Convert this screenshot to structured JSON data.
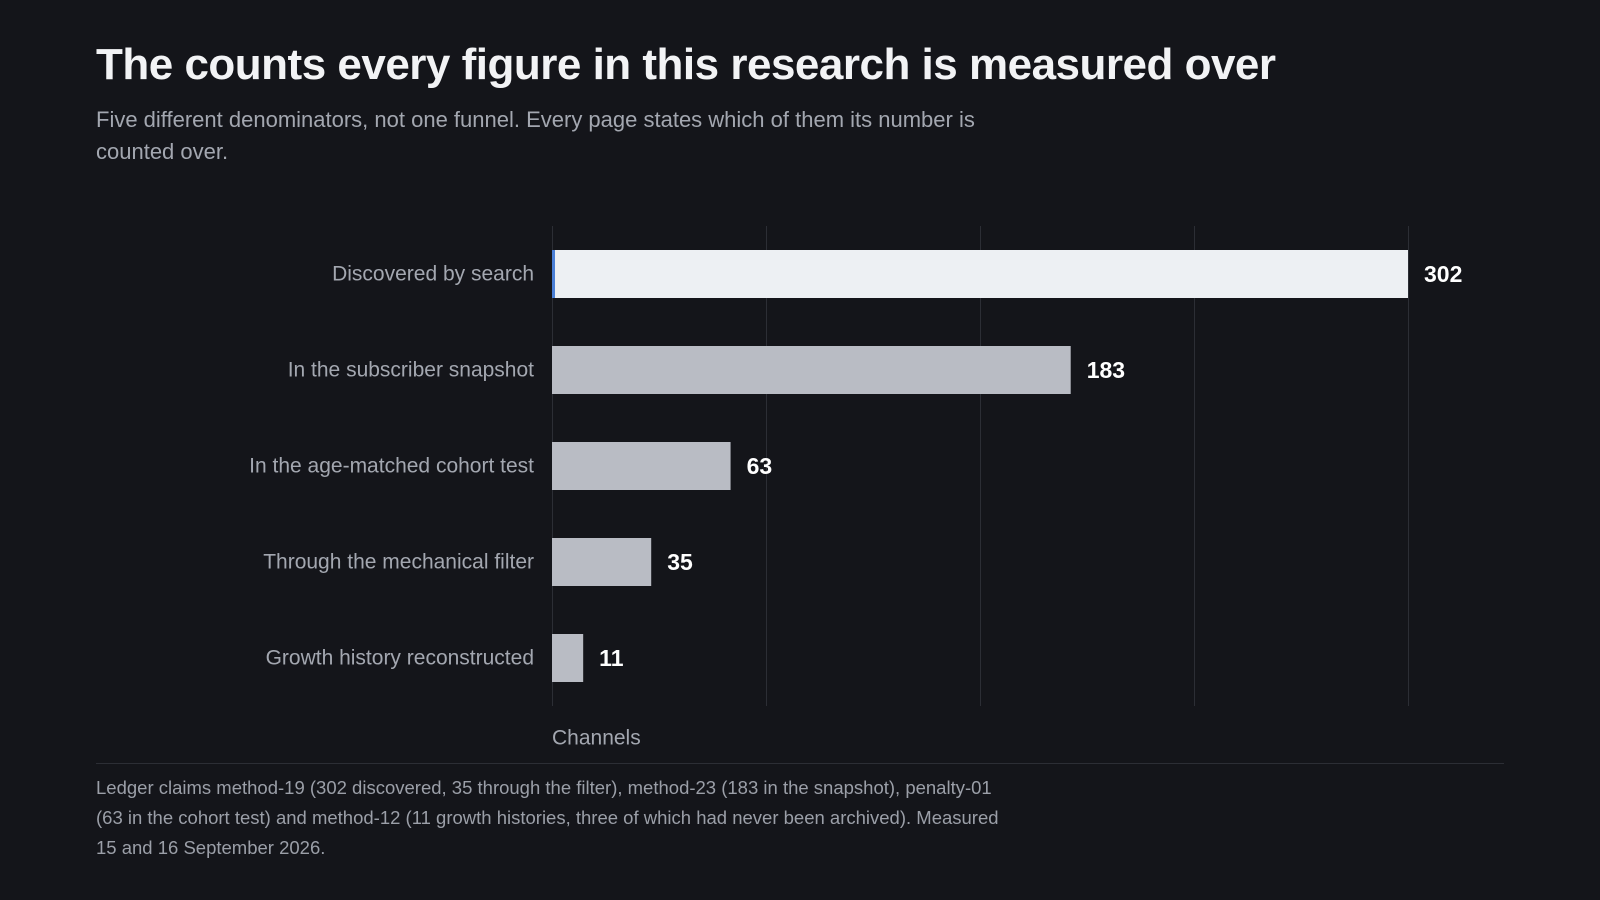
{
  "header": {
    "title": "The counts every figure in this research is measured over",
    "subtitle": "Five different denominators, not one funnel. Every page states which of them its number is counted over."
  },
  "chart_data": {
    "type": "bar",
    "orientation": "horizontal",
    "categories": [
      "Discovered by search",
      "In the subscriber snapshot",
      "In the age-matched cohort test",
      "Through the mechanical filter",
      "Growth history reconstructed"
    ],
    "values": [
      302,
      183,
      63,
      35,
      11
    ],
    "value_labels": [
      "302",
      "183",
      "63",
      "35",
      "11"
    ],
    "xlabel": "Channels",
    "xlim": [
      0,
      302
    ],
    "grid_step": 75.5,
    "grid": true,
    "colors": {
      "highlight_bar": "#edf0f3",
      "highlight_edge": "#4a7fd6",
      "bar": "#b9bcc4",
      "gridline": "#2c2e35",
      "category_label": "#a3a7b0",
      "value_label": "#ffffff"
    }
  },
  "footnote": "Ledger claims method-19 (302 discovered, 35 through the filter), method-23 (183 in the snapshot), penalty-01 (63 in the cohort test) and method-12 (11 growth histories, three of which had never been archived). Measured 15 and 16 September 2026."
}
